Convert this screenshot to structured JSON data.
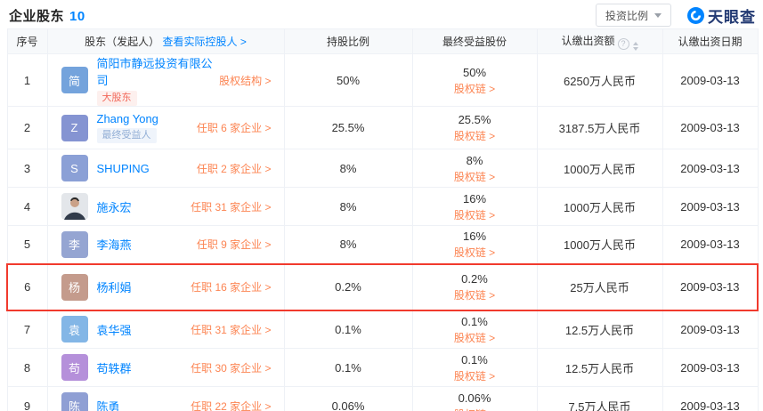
{
  "header": {
    "title": "企业股东",
    "count": "10",
    "filter_label": "投资比例",
    "brand": "天眼查"
  },
  "icons": {
    "help_glyph": "?"
  },
  "table": {
    "col_index": "序号",
    "col_shareholder": "股东（发起人）",
    "col_shareholder_link": "查看实际控股人 >",
    "col_ratio": "持股比例",
    "col_benefit": "最终受益股份",
    "col_capital": "认缴出资额",
    "col_date": "认缴出资日期",
    "chain_label": "股权链 >",
    "rows": [
      {
        "index": "1",
        "avatar_text": "简",
        "avatar_color": "#74a3dc",
        "name": "简阳市静远投资有限公司",
        "tag": "大股东",
        "tag_style": "red",
        "action": "股权结构 >",
        "ratio": "50%",
        "benefit": "50%",
        "capital": "6250万人民币",
        "date": "2009-03-13",
        "highlighted": false
      },
      {
        "index": "2",
        "avatar_text": "Z",
        "avatar_color": "#8594d2",
        "name": "Zhang Yong",
        "tag": "最终受益人",
        "tag_style": "blue",
        "action": "任职 6 家企业 >",
        "ratio": "25.5%",
        "benefit": "25.5%",
        "capital": "3187.5万人民币",
        "date": "2009-03-13",
        "highlighted": false
      },
      {
        "index": "3",
        "avatar_text": "S",
        "avatar_color": "#8ba0d6",
        "name": "SHUPING",
        "tag": "",
        "tag_style": "",
        "action": "任职 2 家企业 >",
        "ratio": "8%",
        "benefit": "8%",
        "capital": "1000万人民币",
        "date": "2009-03-13",
        "highlighted": false
      },
      {
        "index": "4",
        "avatar_text": "",
        "avatar_color": "",
        "avatar_type": "photo",
        "name": "施永宏",
        "tag": "",
        "tag_style": "",
        "action": "任职 31 家企业 >",
        "ratio": "8%",
        "benefit": "16%",
        "capital": "1000万人民币",
        "date": "2009-03-13",
        "highlighted": false
      },
      {
        "index": "5",
        "avatar_text": "李",
        "avatar_color": "#95a5d2",
        "name": "李海燕",
        "tag": "",
        "tag_style": "",
        "action": "任职 9 家企业 >",
        "ratio": "8%",
        "benefit": "16%",
        "capital": "1000万人民币",
        "date": "2009-03-13",
        "highlighted": false
      },
      {
        "index": "6",
        "avatar_text": "杨",
        "avatar_color": "#c49b8c",
        "name": "杨利娟",
        "tag": "",
        "tag_style": "",
        "action": "任职 16 家企业 >",
        "ratio": "0.2%",
        "benefit": "0.2%",
        "capital": "25万人民币",
        "date": "2009-03-13",
        "highlighted": true
      },
      {
        "index": "7",
        "avatar_text": "袁",
        "avatar_color": "#83b6e6",
        "name": "袁华强",
        "tag": "",
        "tag_style": "",
        "action": "任职 31 家企业 >",
        "ratio": "0.1%",
        "benefit": "0.1%",
        "capital": "12.5万人民币",
        "date": "2009-03-13",
        "highlighted": false
      },
      {
        "index": "8",
        "avatar_text": "苟",
        "avatar_color": "#b590da",
        "name": "苟轶群",
        "tag": "",
        "tag_style": "",
        "action": "任职 30 家企业 >",
        "ratio": "0.1%",
        "benefit": "0.1%",
        "capital": "12.5万人民币",
        "date": "2009-03-13",
        "highlighted": false
      },
      {
        "index": "9",
        "avatar_text": "陈",
        "avatar_color": "#8f9fd4",
        "name": "陈勇",
        "tag": "",
        "tag_style": "",
        "action": "任职 22 家企业 >",
        "ratio": "0.06%",
        "benefit": "0.06%",
        "capital": "7.5万人民币",
        "date": "2009-03-13",
        "highlighted": false
      }
    ]
  }
}
